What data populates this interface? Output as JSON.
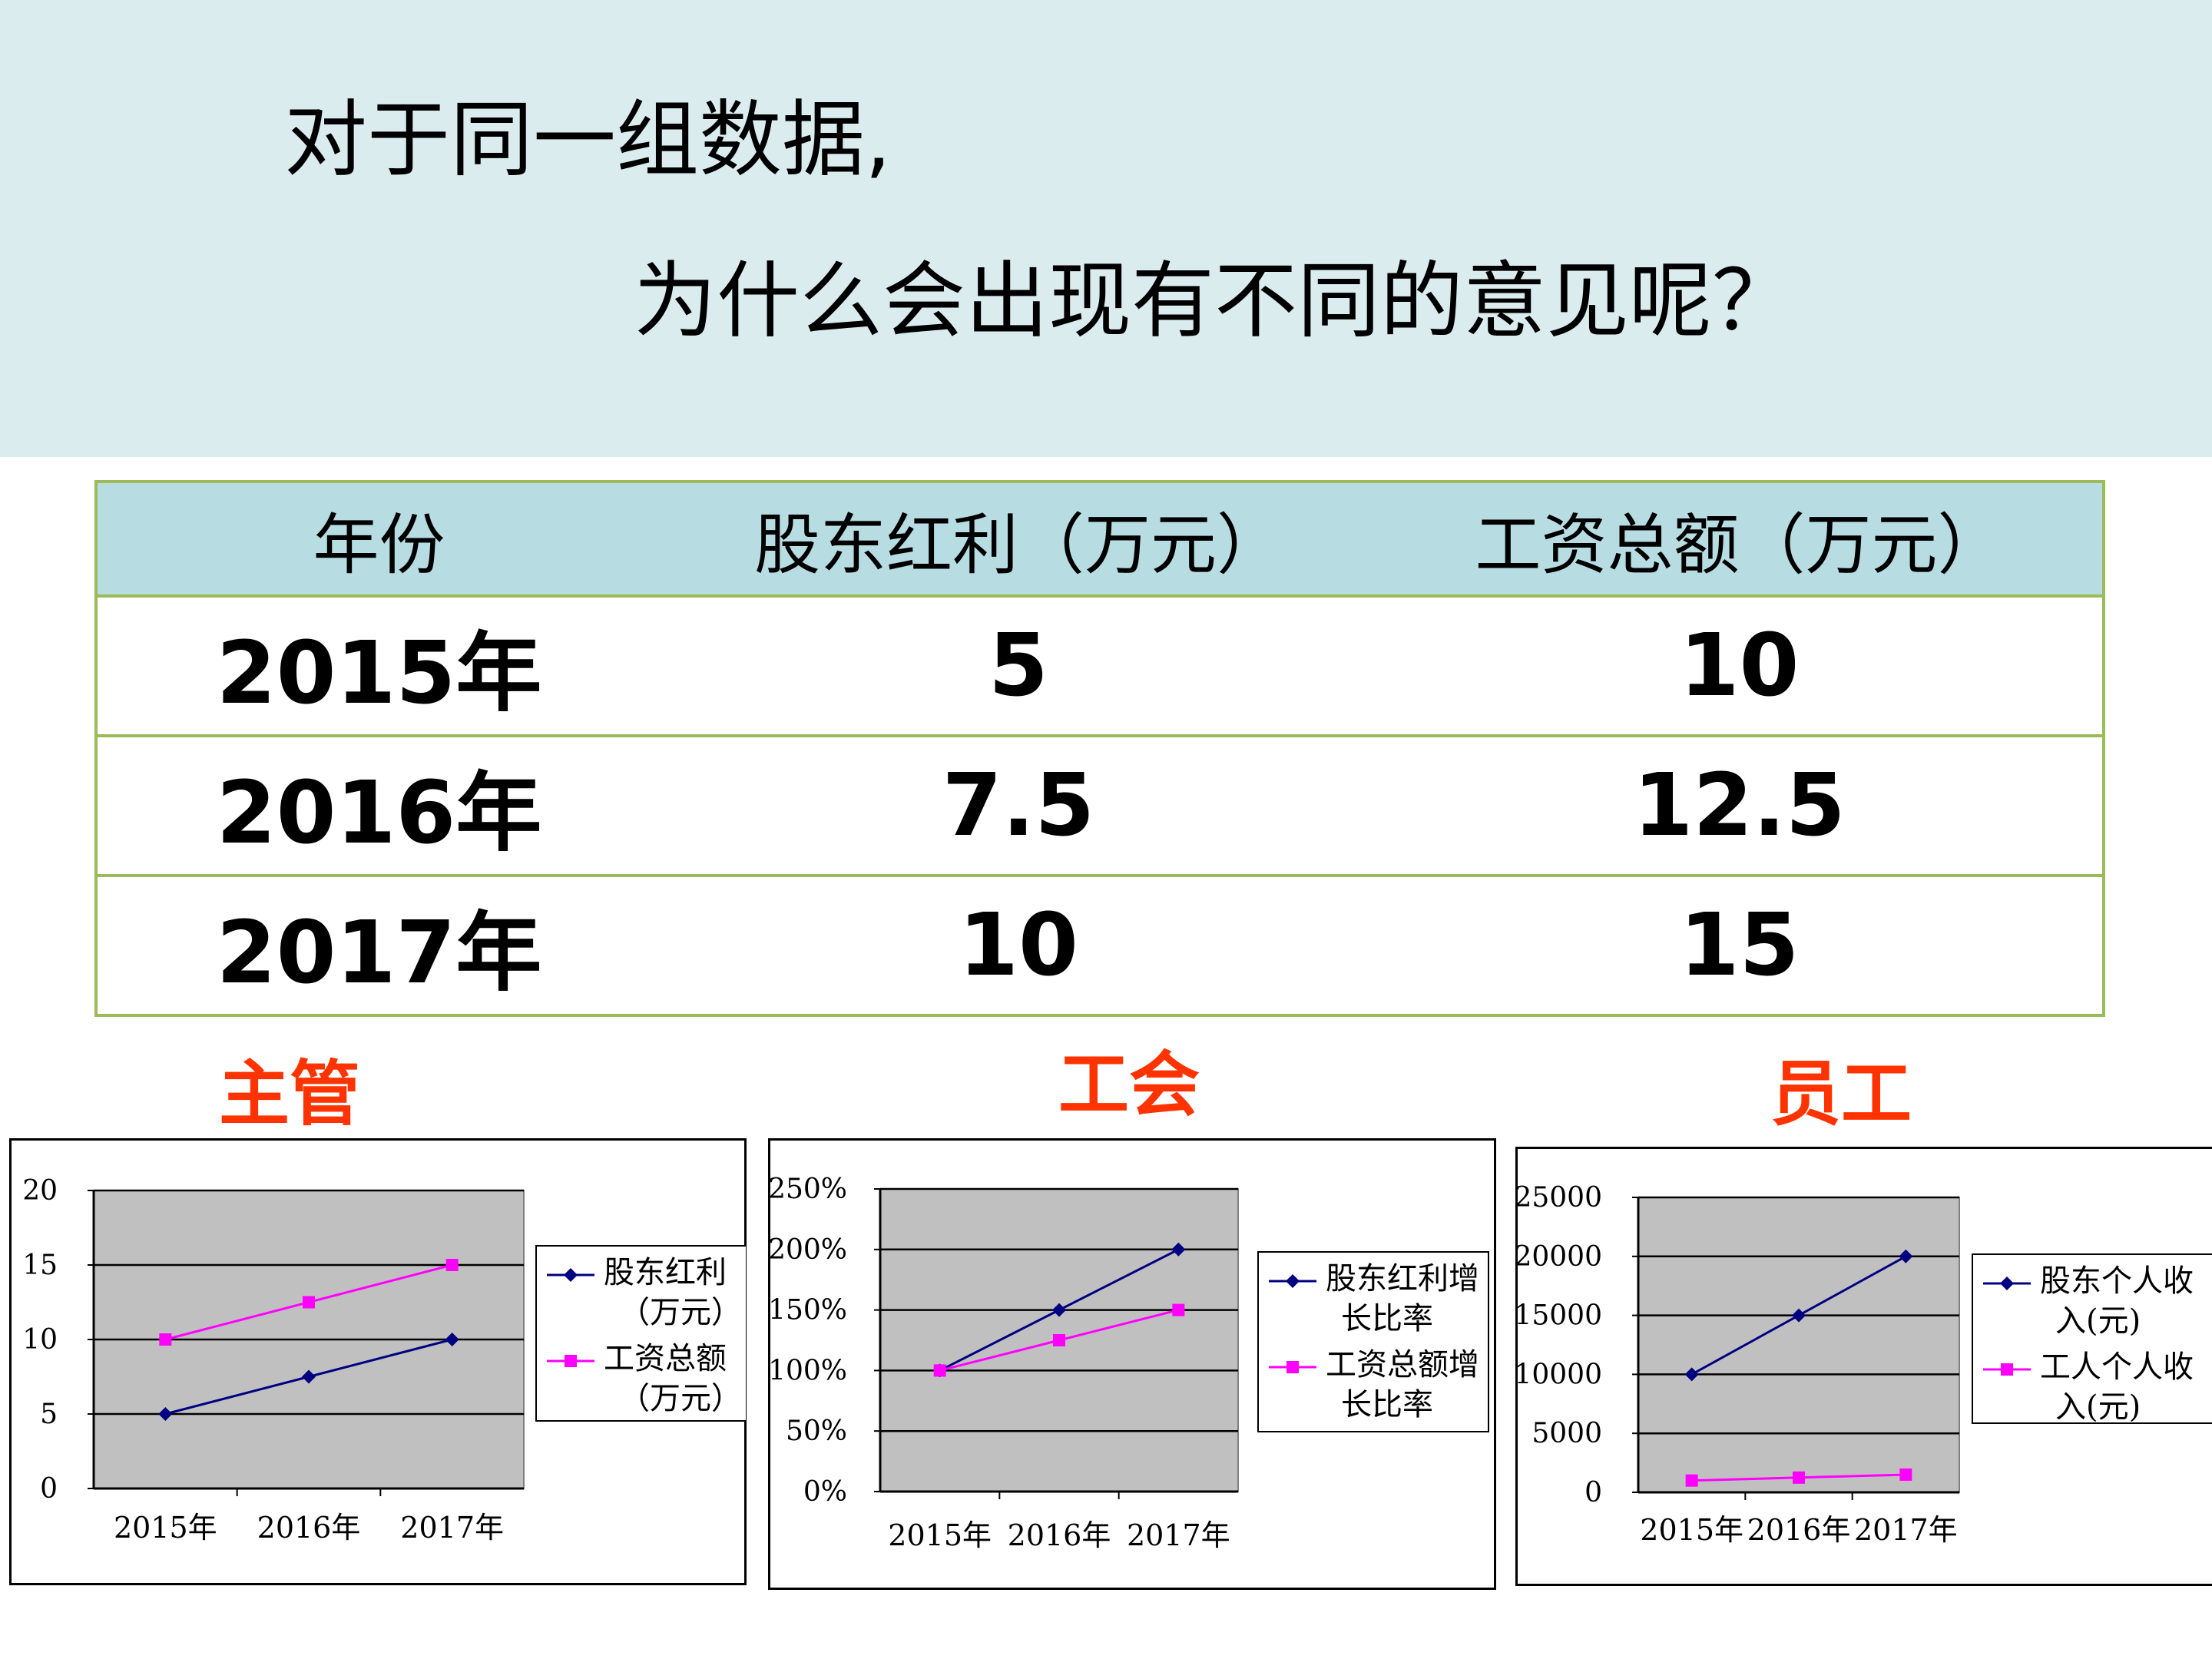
{
  "title": {
    "line1": "对于同一组数据,",
    "line2": "为什么会出现有不同的意见呢？"
  },
  "table": {
    "headers": [
      "年份",
      "股东红利（万元）",
      "工资总额（万元）"
    ],
    "rows": [
      [
        "2015年",
        "5",
        "10"
      ],
      [
        "2016年",
        "7.5",
        "12.5"
      ],
      [
        "2017年",
        "10",
        "15"
      ]
    ]
  },
  "colors": {
    "series1": "#000080",
    "series2": "#ff00ff",
    "plot_bg": "#c0c0c0",
    "label_red": "#ff3300"
  },
  "chart_data": [
    {
      "type": "line",
      "label": "主管",
      "categories": [
        "2015年",
        "2016年",
        "2017年"
      ],
      "series": [
        {
          "name": "股东红利（万元）",
          "legend_lines": [
            "股东红利",
            "（万元）"
          ],
          "values": [
            5,
            7.5,
            10
          ],
          "marker": "diamond"
        },
        {
          "name": "工资总额（万元）",
          "legend_lines": [
            "工资总额",
            "（万元）"
          ],
          "values": [
            10,
            12.5,
            15
          ],
          "marker": "square"
        }
      ],
      "ylim": [
        0,
        20
      ],
      "yticks": [
        "0",
        "5",
        "10",
        "15",
        "20"
      ],
      "grid": true,
      "legend": "right"
    },
    {
      "type": "line",
      "label": "工会",
      "categories": [
        "2015年",
        "2016年",
        "2017年"
      ],
      "series": [
        {
          "name": "股东红利增长比率",
          "legend_lines": [
            "股东红利增",
            "长比率"
          ],
          "values": [
            1.0,
            1.5,
            2.0
          ],
          "marker": "diamond"
        },
        {
          "name": "工资总额增长比率",
          "legend_lines": [
            "工资总额增",
            "长比率"
          ],
          "values": [
            1.0,
            1.25,
            1.5
          ],
          "marker": "square"
        }
      ],
      "ylim": [
        0,
        2.5
      ],
      "yticks": [
        "0%",
        "50%",
        "100%",
        "150%",
        "200%",
        "250%"
      ],
      "grid": true,
      "legend": "right"
    },
    {
      "type": "line",
      "label": "员工",
      "categories": [
        "2015年",
        "2016年",
        "2017年"
      ],
      "series": [
        {
          "name": "股东个人收入(元)",
          "legend_lines": [
            "股东个人收",
            "入(元)"
          ],
          "values": [
            10000,
            15000,
            20000
          ],
          "marker": "diamond"
        },
        {
          "name": "工人个人收入(元)",
          "legend_lines": [
            "工人个人收",
            "入(元)"
          ],
          "values": [
            1000,
            1250,
            1500
          ],
          "marker": "square"
        }
      ],
      "ylim": [
        0,
        25000
      ],
      "yticks": [
        "0",
        "5000",
        "10000",
        "15000",
        "20000",
        "25000"
      ],
      "grid": true,
      "legend": "right"
    }
  ]
}
